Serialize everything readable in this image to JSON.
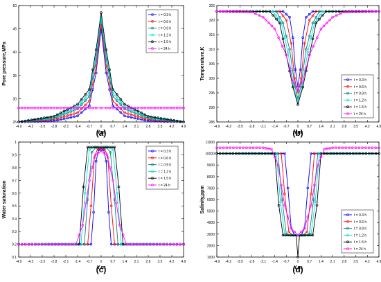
{
  "legend_labels": [
    "t = 0.3 h",
    "t = 0.6 h",
    "t = 0.9 h",
    "t = 1.2 h",
    "t = 1.5 h",
    "t = 24 h"
  ],
  "series_colors": [
    "#0000ff",
    "#ff0000",
    "#008080",
    "#00e0e0",
    "#000000",
    "#ff00ff"
  ],
  "panel_labels": [
    "(a)",
    "(b)",
    "(c)",
    "(d)"
  ],
  "chart_data": [
    {
      "type": "line",
      "panel": "(a)",
      "xlabel": "Y,m",
      "ylabel": "Pore pressure,MPa",
      "xlim": [
        -4.9,
        4.9
      ],
      "ylim": [
        25,
        50
      ],
      "xticks": [
        "-4.9",
        "-4.2",
        "-3.5",
        "-2.8",
        "-2.1",
        "-1.4",
        "-0.7",
        "0",
        "0.7",
        "1.4",
        "2.1",
        "2.8",
        "3.5",
        "4.2",
        "4.9"
      ],
      "yticks": [
        "25",
        "30",
        "35",
        "40",
        "45",
        "50"
      ],
      "legend": "top-right",
      "series": [
        {
          "name": "t = 0.3 h",
          "x": [
            -4.9,
            -2.8,
            -1.4,
            -0.7,
            -0.3,
            0,
            0.3,
            0.7,
            1.4,
            2.8,
            4.9
          ],
          "y": [
            25,
            25.2,
            26.3,
            28.5,
            35.5,
            45,
            35.5,
            28.5,
            26.3,
            25.2,
            25
          ]
        },
        {
          "name": "t = 0.6 h",
          "x": [
            -4.9,
            -2.8,
            -1.4,
            -0.7,
            -0.3,
            0,
            0.3,
            0.7,
            1.4,
            2.8,
            4.9
          ],
          "y": [
            25,
            25.5,
            27.0,
            29.5,
            37.0,
            46,
            37.0,
            29.5,
            27.0,
            25.5,
            25
          ]
        },
        {
          "name": "t = 0.9 h",
          "x": [
            -4.9,
            -2.8,
            -1.4,
            -0.7,
            -0.3,
            0,
            0.3,
            0.7,
            1.4,
            2.8,
            4.9
          ],
          "y": [
            25,
            25.8,
            27.8,
            30.5,
            38.5,
            47,
            38.5,
            30.5,
            27.8,
            25.8,
            25
          ]
        },
        {
          "name": "t = 1.2 h",
          "x": [
            -4.9,
            -2.8,
            -1.4,
            -0.7,
            -0.3,
            0,
            0.3,
            0.7,
            1.4,
            2.8,
            4.9
          ],
          "y": [
            25,
            26.0,
            28.3,
            31.2,
            39.5,
            47.5,
            39.5,
            31.2,
            28.3,
            26.0,
            25
          ]
        },
        {
          "name": "t = 1.5 h",
          "x": [
            -4.9,
            -2.8,
            -1.4,
            -0.7,
            -0.3,
            0,
            0.3,
            0.7,
            1.4,
            2.8,
            4.9
          ],
          "y": [
            25,
            26.2,
            28.8,
            32.0,
            40.5,
            48.5,
            40.5,
            32.0,
            28.8,
            26.2,
            25
          ]
        },
        {
          "name": "t = 24 h",
          "x": [
            -4.9,
            -2.8,
            -1.4,
            -0.7,
            -0.3,
            0,
            0.3,
            0.7,
            1.4,
            2.8,
            4.9
          ],
          "y": [
            28,
            28,
            28,
            28,
            28,
            28,
            28,
            28,
            28,
            28,
            28
          ]
        }
      ]
    },
    {
      "type": "line",
      "panel": "(b)",
      "xlabel": "Y,m",
      "ylabel": "Temperature,K",
      "xlim": [
        -4.9,
        4.9
      ],
      "ylim": [
        285,
        325
      ],
      "xticks": [
        "-4.9",
        "-4.2",
        "-3.5",
        "-2.8",
        "-2.1",
        "-1.4",
        "-0.7",
        "0",
        "0.7",
        "1.4",
        "2.1",
        "2.8",
        "3.5",
        "4.2",
        "4.9"
      ],
      "yticks": [
        "285",
        "290",
        "295",
        "300",
        "305",
        "310",
        "315",
        "320",
        "325"
      ],
      "legend": "bottom-right",
      "series": [
        {
          "name": "t = 0.3 h",
          "x": [
            -4.9,
            -0.9,
            -0.5,
            -0.3,
            -0.15,
            0,
            0.15,
            0.3,
            0.5,
            0.9,
            4.9
          ],
          "y": [
            323,
            323,
            321,
            314,
            303,
            297,
            303,
            314,
            321,
            323,
            323
          ]
        },
        {
          "name": "t = 0.6 h",
          "x": [
            -4.9,
            -1.1,
            -0.7,
            -0.4,
            -0.2,
            0,
            0.2,
            0.4,
            0.7,
            1.1,
            4.9
          ],
          "y": [
            323,
            323,
            320,
            312,
            300,
            295,
            300,
            312,
            320,
            323,
            323
          ]
        },
        {
          "name": "t = 0.9 h",
          "x": [
            -4.9,
            -1.3,
            -0.9,
            -0.5,
            -0.2,
            0,
            0.2,
            0.5,
            0.9,
            1.3,
            4.9
          ],
          "y": [
            323,
            323,
            319,
            310,
            298,
            293,
            298,
            310,
            319,
            323,
            323
          ]
        },
        {
          "name": "t = 1.2 h",
          "x": [
            -4.9,
            -1.5,
            -1.0,
            -0.6,
            -0.25,
            0,
            0.25,
            0.6,
            1.0,
            1.5,
            4.9
          ],
          "y": [
            323,
            323,
            319,
            309,
            297,
            292,
            297,
            309,
            319,
            323,
            323
          ]
        },
        {
          "name": "t = 1.5 h",
          "x": [
            -4.9,
            -1.7,
            -1.1,
            -0.7,
            -0.3,
            0,
            0.3,
            0.7,
            1.1,
            1.7,
            4.9
          ],
          "y": [
            323,
            323,
            319,
            308,
            297,
            291,
            297,
            308,
            319,
            323,
            323
          ]
        },
        {
          "name": "t = 24 h",
          "x": [
            -4.9,
            -2.8,
            -2.1,
            -1.4,
            -0.7,
            -0.3,
            0,
            0.3,
            0.7,
            1.4,
            2.1,
            2.8,
            4.9
          ],
          "y": [
            323,
            322.8,
            321,
            317,
            308,
            299,
            296,
            299,
            308,
            317,
            321,
            322.8,
            323
          ]
        }
      ]
    },
    {
      "type": "line",
      "panel": "(c)",
      "xlabel": "Y,m",
      "ylabel": "Water saturation",
      "xlim": [
        -4.9,
        4.9
      ],
      "ylim": [
        0.1,
        1
      ],
      "xticks": [
        "-4.9",
        "-4.2",
        "-3.5",
        "-2.8",
        "-2.1",
        "-1.4",
        "-0.7",
        "0",
        "0.7",
        "1.4",
        "2.1",
        "2.8",
        "3.5",
        "4.2",
        "4.9"
      ],
      "yticks": [
        "0.1",
        "0.2",
        "0.3",
        "0.4",
        "0.5",
        "0.6",
        "0.7",
        "0.8",
        "0.9",
        "1"
      ],
      "legend": "top-right",
      "series": [
        {
          "name": "t = 0.3 h",
          "x": [
            -4.9,
            -0.6,
            -0.45,
            -0.3,
            -0.15,
            0,
            0.15,
            0.3,
            0.45,
            0.6,
            4.9
          ],
          "y": [
            0.2,
            0.2,
            0.45,
            0.85,
            0.94,
            0.94,
            0.94,
            0.85,
            0.45,
            0.2,
            0.2
          ]
        },
        {
          "name": "t = 0.6 h",
          "x": [
            -4.9,
            -0.8,
            -0.6,
            -0.4,
            -0.2,
            0,
            0.2,
            0.4,
            0.6,
            0.8,
            4.9
          ],
          "y": [
            0.2,
            0.2,
            0.5,
            0.88,
            0.95,
            0.95,
            0.95,
            0.88,
            0.5,
            0.2,
            0.2
          ]
        },
        {
          "name": "t = 0.9 h",
          "x": [
            -4.9,
            -1.0,
            -0.8,
            -0.55,
            -0.3,
            0,
            0.3,
            0.55,
            0.8,
            1.0,
            4.9
          ],
          "y": [
            0.2,
            0.2,
            0.55,
            0.92,
            0.96,
            0.96,
            0.96,
            0.92,
            0.55,
            0.2,
            0.2
          ]
        },
        {
          "name": "t = 1.2 h",
          "x": [
            -4.9,
            -1.2,
            -0.95,
            -0.7,
            -0.4,
            0,
            0.4,
            0.7,
            0.95,
            1.2,
            4.9
          ],
          "y": [
            0.2,
            0.2,
            0.6,
            0.94,
            0.96,
            0.96,
            0.96,
            0.94,
            0.6,
            0.2,
            0.2
          ]
        },
        {
          "name": "t = 1.5 h",
          "x": [
            -4.9,
            -1.3,
            -1.05,
            -0.8,
            -0.5,
            0,
            0.5,
            0.8,
            1.05,
            1.3,
            4.9
          ],
          "y": [
            0.2,
            0.2,
            0.65,
            0.96,
            0.96,
            0.96,
            0.96,
            0.96,
            0.65,
            0.2,
            0.2
          ]
        },
        {
          "name": "t = 24 h",
          "x": [
            -4.9,
            -1.5,
            -1.1,
            -0.7,
            -0.35,
            0,
            0.35,
            0.7,
            1.1,
            1.5,
            4.9
          ],
          "y": [
            0.2,
            0.2,
            0.35,
            0.7,
            0.9,
            0.93,
            0.9,
            0.7,
            0.35,
            0.2,
            0.2
          ]
        }
      ]
    },
    {
      "type": "line",
      "panel": "(d)",
      "xlabel": "Y,m",
      "ylabel": "Salinity,ppm",
      "xlim": [
        -4.9,
        4.9
      ],
      "ylim": [
        1000,
        11000
      ],
      "xticks": [
        "-4.9",
        "-4.2",
        "-3.5",
        "-2.8",
        "-2.1",
        "-1.4",
        "-0.7",
        "0",
        "0.7",
        "1.4",
        "2.1",
        "2.8",
        "3.5",
        "4.2",
        "4.9"
      ],
      "yticks": [
        "1000",
        "2000",
        "3000",
        "4000",
        "5000",
        "6000",
        "7000",
        "8000",
        "9000",
        "10000",
        "11000"
      ],
      "legend": "bottom-right",
      "series": [
        {
          "name": "t = 0.3 h",
          "x": [
            -4.9,
            -0.8,
            -0.6,
            -0.4,
            -0.2,
            0,
            0.2,
            0.4,
            0.6,
            0.8,
            4.9
          ],
          "y": [
            10000,
            10000,
            7000,
            3500,
            2900,
            2900,
            2900,
            3500,
            7000,
            10000,
            10000
          ]
        },
        {
          "name": "t = 0.6 h",
          "x": [
            -4.9,
            -1.0,
            -0.8,
            -0.55,
            -0.3,
            0,
            0.3,
            0.55,
            0.8,
            1.0,
            4.9
          ],
          "y": [
            10000,
            10000,
            6500,
            3200,
            2900,
            2900,
            2900,
            3200,
            6500,
            10000,
            10000
          ]
        },
        {
          "name": "t = 0.9 h",
          "x": [
            -4.9,
            -1.2,
            -0.95,
            -0.7,
            -0.4,
            0,
            0.4,
            0.7,
            0.95,
            1.2,
            4.9
          ],
          "y": [
            10000,
            10000,
            6000,
            3000,
            2900,
            2900,
            2900,
            3000,
            6000,
            10000,
            10000
          ]
        },
        {
          "name": "t = 1.2 h",
          "x": [
            -4.9,
            -1.3,
            -1.05,
            -0.8,
            -0.5,
            0,
            0.5,
            0.8,
            1.05,
            1.3,
            4.9
          ],
          "y": [
            10000,
            10000,
            5800,
            3000,
            2900,
            2900,
            2900,
            3000,
            5800,
            10000,
            10000
          ]
        },
        {
          "name": "t = 1.5 h",
          "x": [
            -4.9,
            -1.4,
            -1.15,
            -0.9,
            -0.6,
            -0.1,
            0,
            0.1,
            0.6,
            0.9,
            1.15,
            1.4,
            4.9
          ],
          "y": [
            10000,
            10000,
            5500,
            2900,
            2900,
            2900,
            1000,
            2900,
            2900,
            2900,
            5500,
            10000,
            10000
          ]
        },
        {
          "name": "t = 24 h",
          "x": [
            -4.9,
            -2.1,
            -1.6,
            -1.2,
            -0.8,
            -0.4,
            0,
            0.4,
            0.8,
            1.2,
            1.6,
            2.1,
            4.9
          ],
          "y": [
            10500,
            10500,
            10400,
            9000,
            5500,
            3500,
            2900,
            3500,
            5500,
            9000,
            10400,
            10500,
            10500
          ]
        }
      ]
    }
  ]
}
